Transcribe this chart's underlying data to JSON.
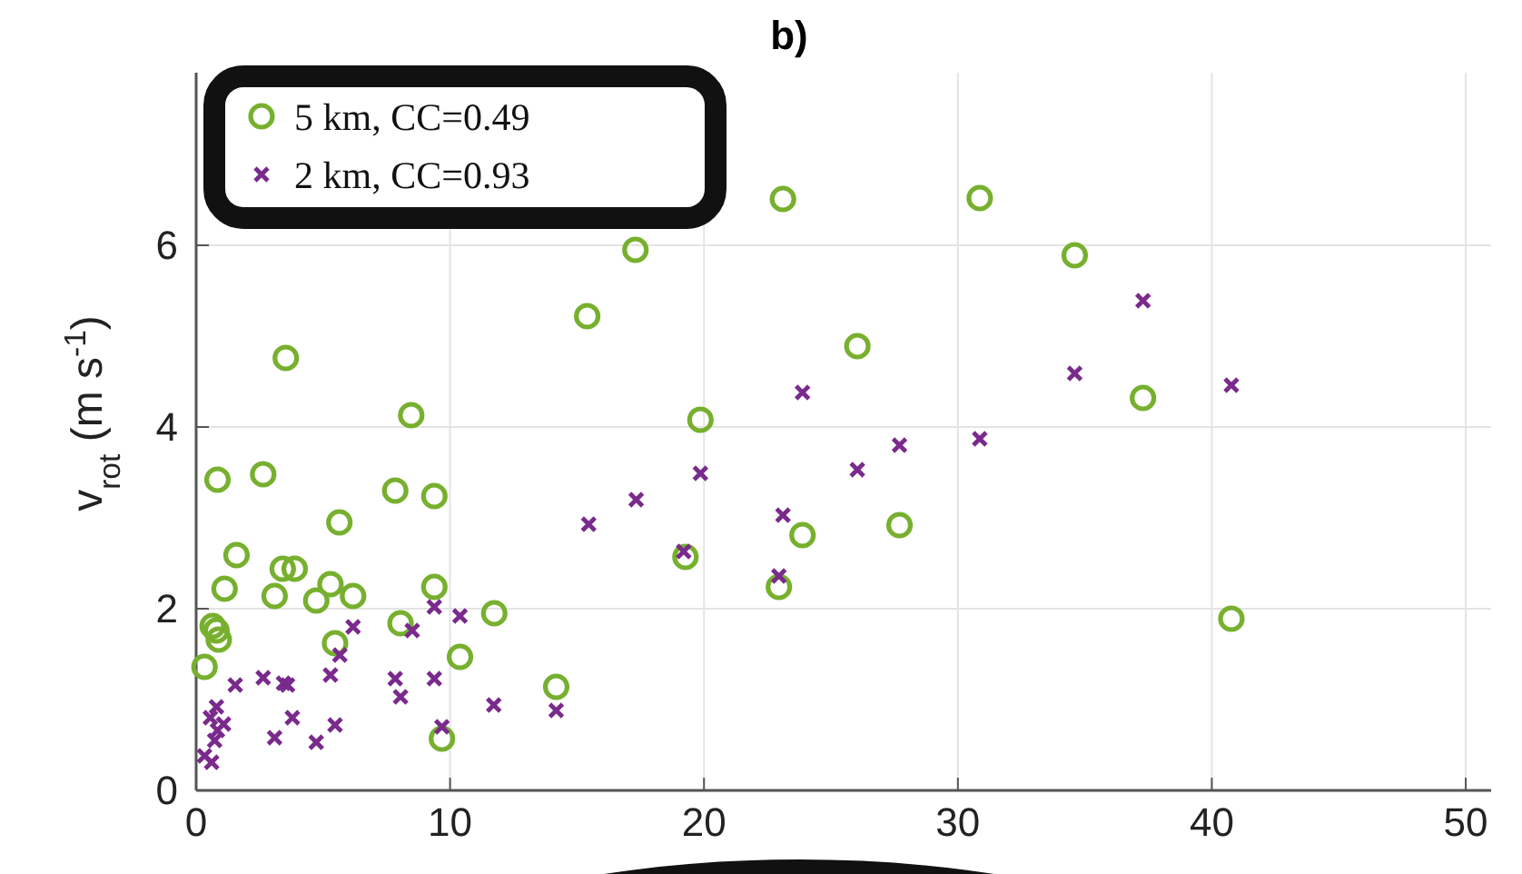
{
  "chart_data": {
    "type": "scatter",
    "title": "b)",
    "ylabel": "v$_{rot}$ (m s$^{-1}$)",
    "xlim": [
      0,
      51
    ],
    "ylim": [
      0,
      7.9
    ],
    "xticks": [
      0,
      10,
      20,
      30,
      40,
      50
    ],
    "yticks": [
      0,
      2,
      4,
      6
    ],
    "grid": true,
    "legend": "top left",
    "series": [
      {
        "name": "5 km, CC=0.49",
        "color": "#77b02e",
        "marker": "circle",
        "x": [
          0.84,
          2.64,
          3.53,
          8.47,
          7.84,
          9.38,
          5.64,
          1.59,
          3.41,
          3.88,
          1.12,
          3.09,
          4.73,
          5.29,
          6.18,
          9.38,
          0.65,
          0.8,
          0.89,
          0.33,
          5.47,
          8.05,
          11.74,
          10.39,
          14.18,
          9.68,
          23.11,
          30.86,
          34.6,
          26.04,
          19.86,
          37.29,
          23.88,
          27.7,
          19.27,
          22.95,
          40.77,
          17.3,
          15.4
        ],
        "values": [
          3.42,
          3.48,
          4.76,
          4.13,
          3.3,
          3.24,
          2.95,
          2.59,
          2.44,
          2.44,
          2.22,
          2.14,
          2.09,
          2.27,
          2.14,
          2.24,
          1.81,
          1.76,
          1.66,
          1.36,
          1.62,
          1.84,
          1.95,
          1.47,
          1.14,
          0.57,
          6.51,
          6.52,
          5.89,
          4.89,
          4.08,
          4.32,
          2.81,
          2.92,
          2.57,
          2.24,
          1.89,
          5.95,
          5.22
        ]
      },
      {
        "name": "2 km, CC=0.93",
        "color": "#7a2a8c",
        "marker": "cross",
        "x": [
          9.38,
          10.39,
          6.18,
          8.51,
          5.66,
          1.54,
          2.64,
          3.44,
          3.6,
          5.29,
          7.84,
          9.38,
          8.05,
          11.72,
          14.18,
          3.79,
          3.09,
          4.73,
          5.47,
          9.68,
          0.8,
          0.56,
          1.08,
          0.84,
          0.73,
          0.33,
          0.61,
          15.46,
          17.33,
          19.2,
          19.86,
          23.88,
          27.7,
          26.04,
          30.86,
          23.11,
          22.95,
          37.29,
          34.6,
          40.77
        ],
        "values": [
          2.02,
          1.92,
          1.8,
          1.76,
          1.49,
          1.16,
          1.24,
          1.18,
          1.16,
          1.27,
          1.23,
          1.23,
          1.03,
          0.94,
          0.88,
          0.8,
          0.58,
          0.53,
          0.72,
          0.7,
          0.92,
          0.8,
          0.73,
          0.66,
          0.55,
          0.38,
          0.31,
          2.93,
          3.2,
          2.63,
          3.49,
          4.38,
          3.8,
          3.53,
          3.87,
          3.03,
          2.36,
          5.39,
          4.59,
          4.46
        ]
      }
    ]
  }
}
